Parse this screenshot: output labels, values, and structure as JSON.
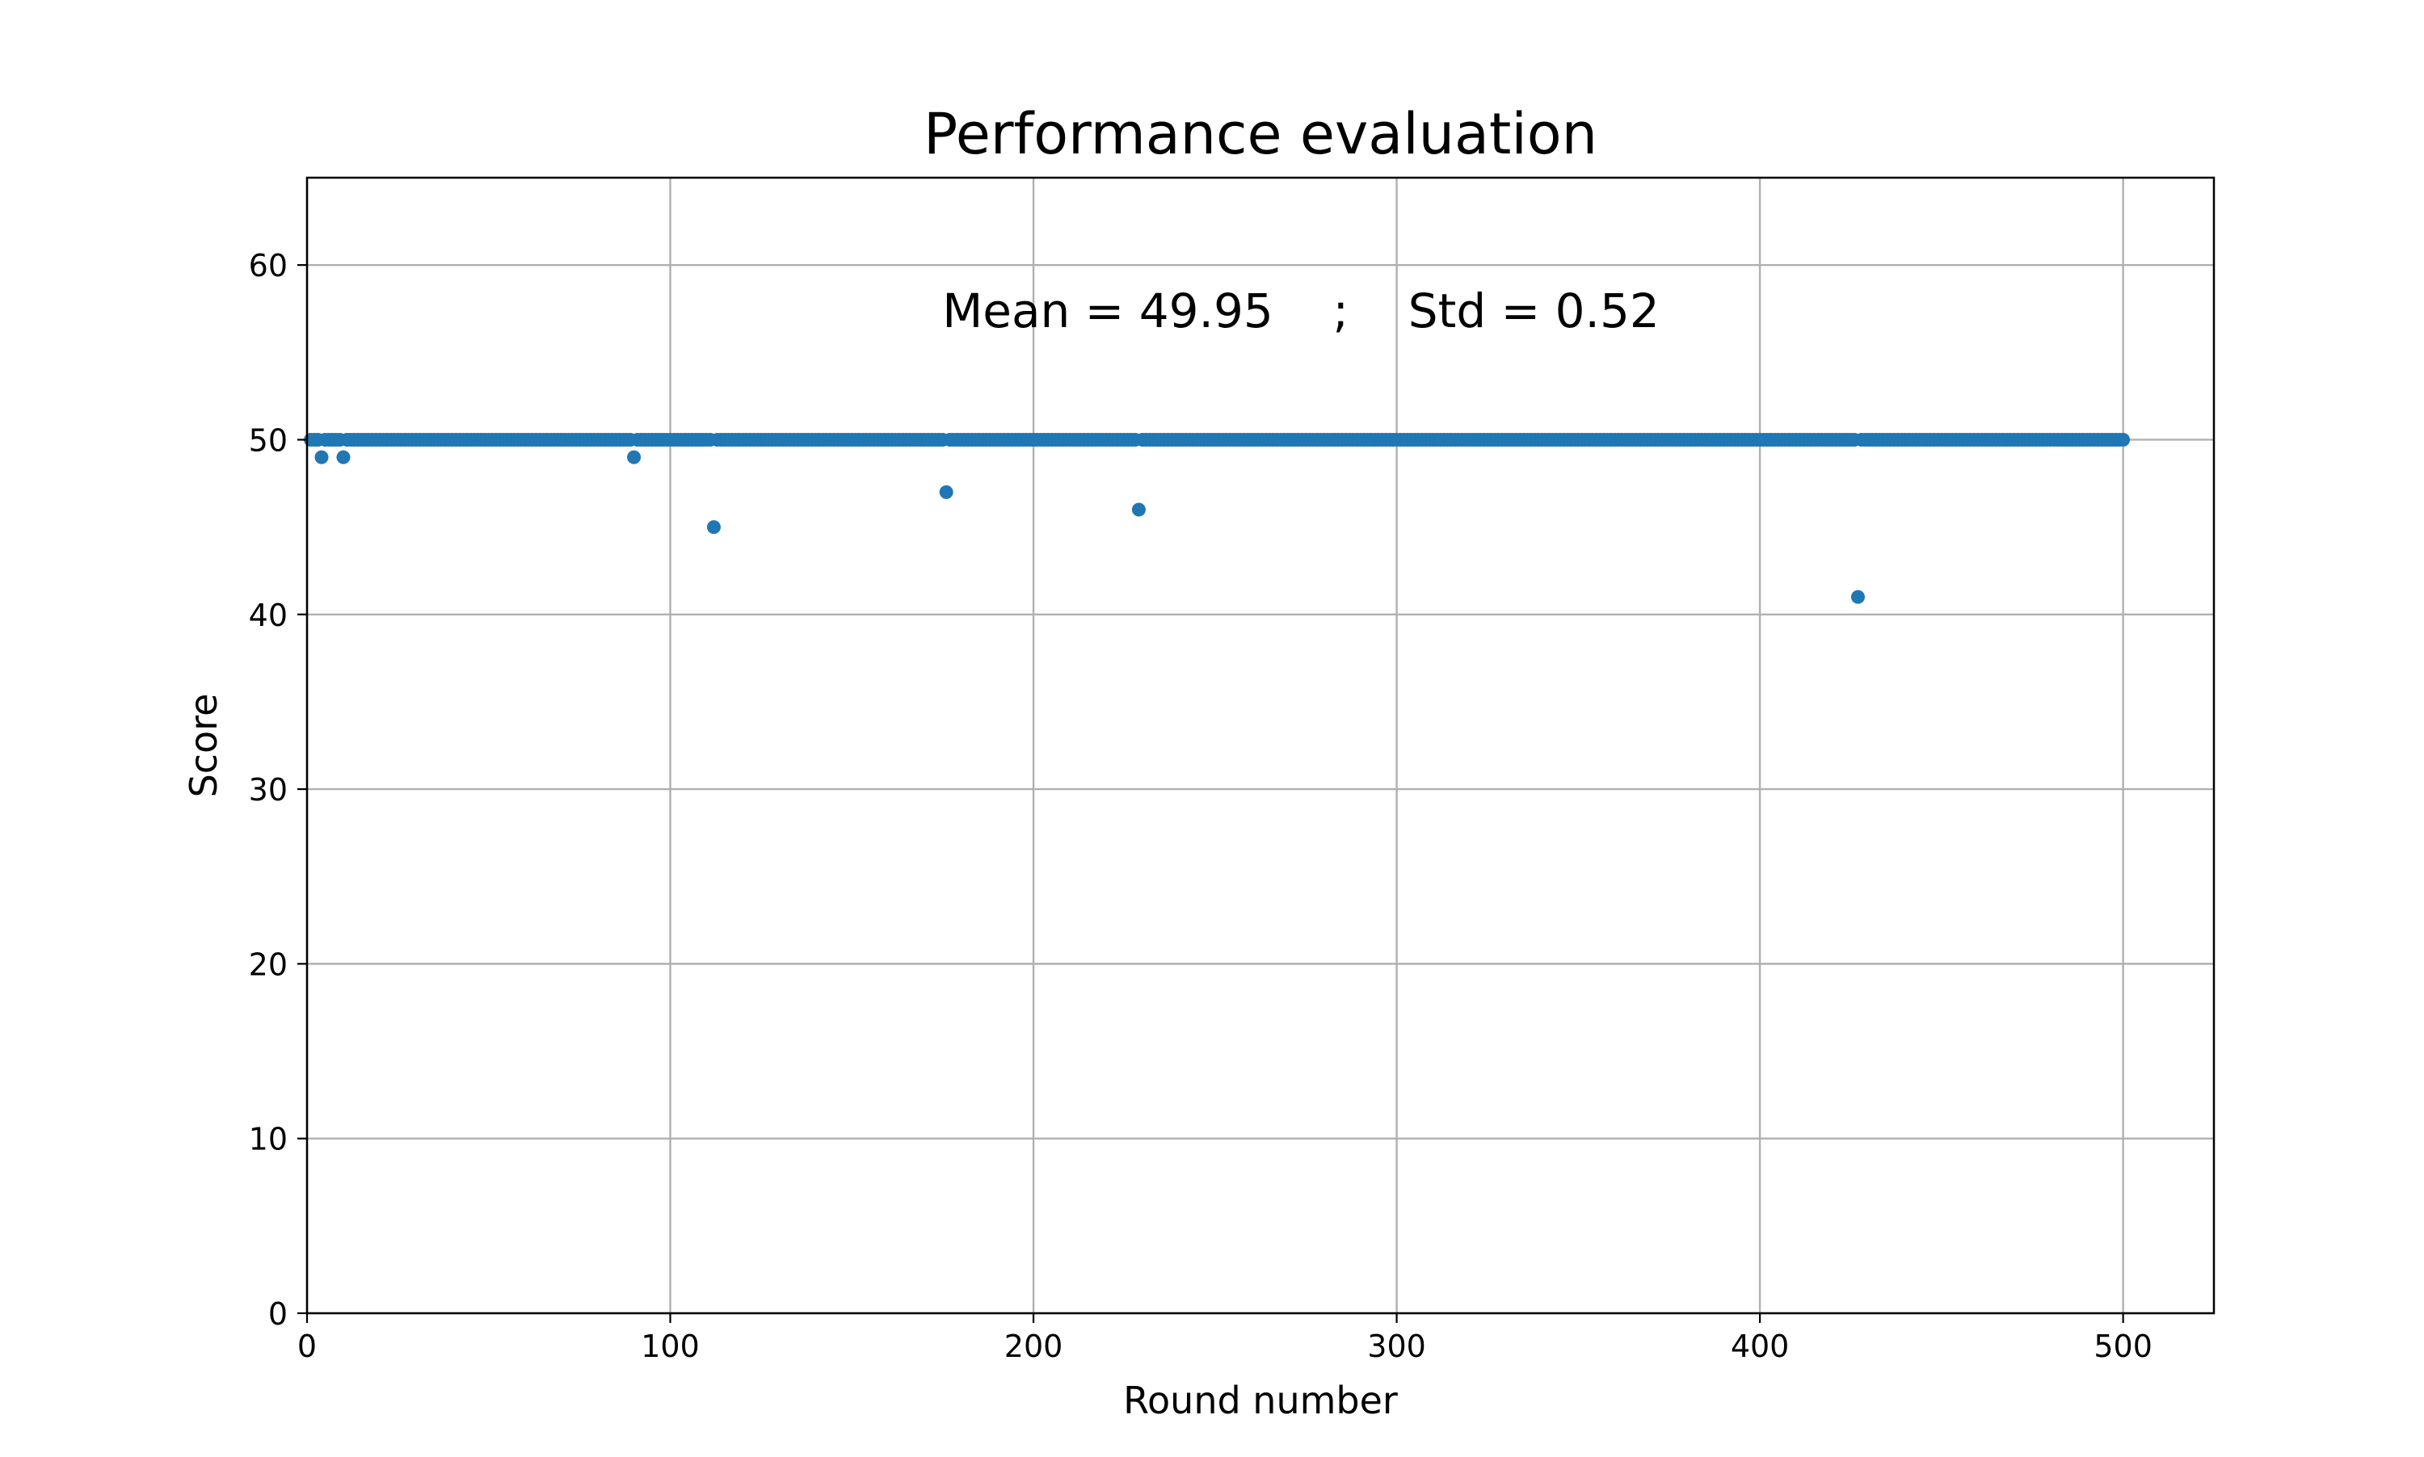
{
  "chart_data": {
    "type": "scatter",
    "title": "Performance evaluation",
    "xlabel": "Round number",
    "ylabel": "Score",
    "xlim": [
      0,
      525
    ],
    "ylim": [
      0,
      65
    ],
    "xticks": [
      0,
      100,
      200,
      300,
      400,
      500
    ],
    "yticks": [
      0,
      10,
      20,
      30,
      40,
      50,
      60
    ],
    "grid": true,
    "legend": "none",
    "marker_color": "#1f77b4",
    "annotation": "Mean = 49.95    ;    Std = 0.52",
    "series": [
      {
        "default_value": 50,
        "x_range": [
          1,
          500
        ],
        "outliers": [
          {
            "x": 4,
            "y": 49
          },
          {
            "x": 10,
            "y": 49
          },
          {
            "x": 90,
            "y": 49
          },
          {
            "x": 112,
            "y": 45
          },
          {
            "x": 176,
            "y": 47
          },
          {
            "x": 229,
            "y": 46
          },
          {
            "x": 427,
            "y": 41
          }
        ]
      }
    ]
  }
}
